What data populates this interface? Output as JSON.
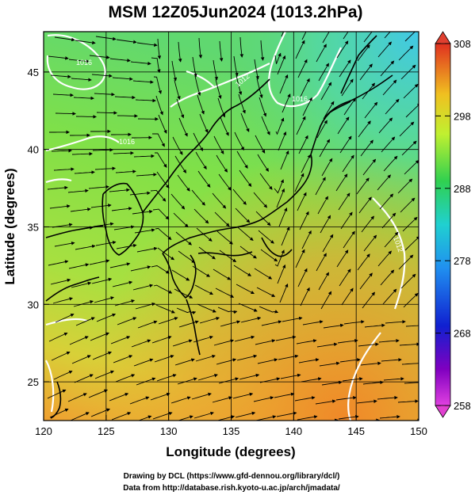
{
  "title": "MSM 12Z05Jun2024 (1013.2hPa)",
  "xlabel": "Longitude (degrees)",
  "ylabel": "Latitude  (degrees)",
  "x_ticks": [
    "120",
    "125",
    "130",
    "135",
    "140",
    "145",
    "150"
  ],
  "y_ticks": [
    "25",
    "30",
    "35",
    "40",
    "45"
  ],
  "colorbar_ticks": [
    "308",
    "298",
    "288",
    "278",
    "268",
    "258"
  ],
  "contour_labels": [
    "1016",
    "1016",
    "1012",
    "1016",
    "1012"
  ],
  "credits": {
    "line1": "Drawing by DCL (https://www.gfd-dennou.org/library/dcl/)",
    "line2": "Data from http://database.rish.kyoto-u.ac.jp/arch/jmadata/"
  },
  "map": {
    "lon_range": [
      120,
      150
    ],
    "lat_range": [
      22.5,
      47.6
    ],
    "variable_range": [
      258,
      308
    ],
    "colors": {
      "warm": "#f0a030",
      "mid": "#8ee04a",
      "cool": "#40d8c8",
      "contour": "#ffffff",
      "coast": "#000000"
    }
  }
}
